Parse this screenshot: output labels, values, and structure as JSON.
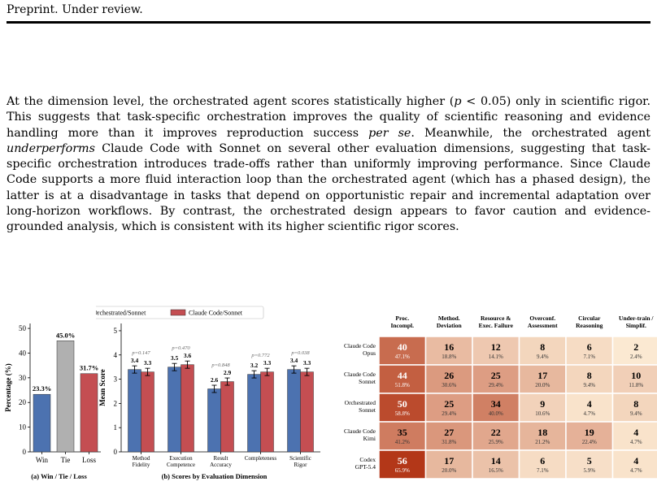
{
  "header": "Preprint. Under review.",
  "paragraph": [
    {
      "t": "At the dimension level, the orchestrated agent scores statistically higher ("
    },
    {
      "t": "p",
      "i": true
    },
    {
      "t": " < 0.05) only in scientific rigor. This suggests that task-specific orchestration improves the quality of scientific reasoning and evidence handling more than it improves reproduction success "
    },
    {
      "t": "per se",
      "i": true
    },
    {
      "t": ". Meanwhile, the orchestrated agent "
    },
    {
      "t": "underperforms",
      "i": true
    },
    {
      "t": " Claude Code with Sonnet on several other evaluation dimensions, suggesting that task-specific orchestration introduces trade-offs rather than uniformly improving performance. Since Claude Code supports a more fluid interaction loop than the orchestrated agent (which has a phased design), the latter is at a disadvantage in tasks that depend on opportunistic repair and incremental adaptation over long-horizon workflows. By contrast, the orchestrated design appears to favor caution and evidence-grounded analysis, which is consistent with its higher scientific rigor scores."
    }
  ],
  "colors": {
    "orchestrated": "#4c72b0",
    "claude": "#c44e52",
    "tie": "#b0b0b0"
  },
  "chart_data": [
    {
      "type": "bar",
      "caption": "(a) Win / Tie / Loss",
      "categories": [
        "Win",
        "Tie",
        "Loss"
      ],
      "values": [
        23.3,
        45.0,
        31.7
      ],
      "value_labels": [
        "23.3%",
        "45.0%",
        "31.7%"
      ],
      "ylabel": "Percentage (%)",
      "ylim": [
        0,
        52
      ],
      "yticks": [
        0,
        10,
        20,
        30,
        40,
        50
      ]
    },
    {
      "type": "bar",
      "caption": "(b) Scores by Evaluation Dimension",
      "ylabel": "Mean Score",
      "ylim": [
        0,
        5.3
      ],
      "yticks": [
        0,
        1,
        2,
        3,
        4,
        5
      ],
      "legend": [
        "Orchestrated/Sonnet",
        "Claude Code/Sonnet"
      ],
      "categories": [
        [
          "Method",
          "Fidelity"
        ],
        [
          "Execution",
          "Competence"
        ],
        [
          "Result",
          "Accuracy"
        ],
        [
          "Completeness",
          ""
        ],
        [
          "Scientific",
          "Rigor"
        ]
      ],
      "series": [
        {
          "name": "Orchestrated/Sonnet",
          "values": [
            3.4,
            3.5,
            2.6,
            3.2,
            3.4
          ],
          "labels": [
            "3.4",
            "3.5",
            "2.6",
            "3.2",
            "3.4"
          ]
        },
        {
          "name": "Claude Code/Sonnet",
          "values": [
            3.3,
            3.6,
            2.9,
            3.3,
            3.3
          ],
          "labels": [
            "3.3",
            "3.6",
            "2.9",
            "3.3",
            "3.3"
          ]
        }
      ],
      "pvalues": [
        "p=0.147",
        "p=0.470",
        "p=0.848",
        "p=0.772",
        "p=0.038"
      ]
    },
    {
      "type": "heatmap",
      "columns": [
        [
          "Proc.",
          "Incompl."
        ],
        [
          "Method.",
          "Deviation"
        ],
        [
          "Resource &",
          "Exec. Failure"
        ],
        [
          "Overconf.",
          "Assessment"
        ],
        [
          "Circular",
          "Reasoning"
        ],
        [
          "Under-train /",
          "Simplif."
        ]
      ],
      "rows": [
        {
          "label": [
            "Claude Code",
            "Opus"
          ],
          "values": [
            40,
            16,
            12,
            8,
            6,
            2
          ],
          "pcts": [
            "47.1%",
            "18.8%",
            "14.1%",
            "9.4%",
            "7.1%",
            "2.4%"
          ]
        },
        {
          "label": [
            "Claude Code",
            "Sonnet"
          ],
          "values": [
            44,
            26,
            25,
            17,
            8,
            10
          ],
          "pcts": [
            "51.8%",
            "30.6%",
            "29.4%",
            "20.0%",
            "9.4%",
            "11.8%"
          ]
        },
        {
          "label": [
            "Orchestrated",
            "Sonnet"
          ],
          "values": [
            50,
            25,
            34,
            9,
            4,
            8
          ],
          "pcts": [
            "58.8%",
            "29.4%",
            "40.0%",
            "10.6%",
            "4.7%",
            "9.4%"
          ]
        },
        {
          "label": [
            "Claude Code",
            "Kimi"
          ],
          "values": [
            35,
            27,
            22,
            18,
            19,
            4
          ],
          "pcts": [
            "41.2%",
            "31.8%",
            "25.9%",
            "21.2%",
            "22.4%",
            "4.7%"
          ]
        },
        {
          "label": [
            "Codex",
            "GPT-5.4"
          ],
          "values": [
            56,
            17,
            14,
            6,
            5,
            4
          ],
          "pcts": [
            "65.9%",
            "20.0%",
            "16.5%",
            "7.1%",
            "5.9%",
            "4.7%"
          ]
        }
      ]
    }
  ]
}
